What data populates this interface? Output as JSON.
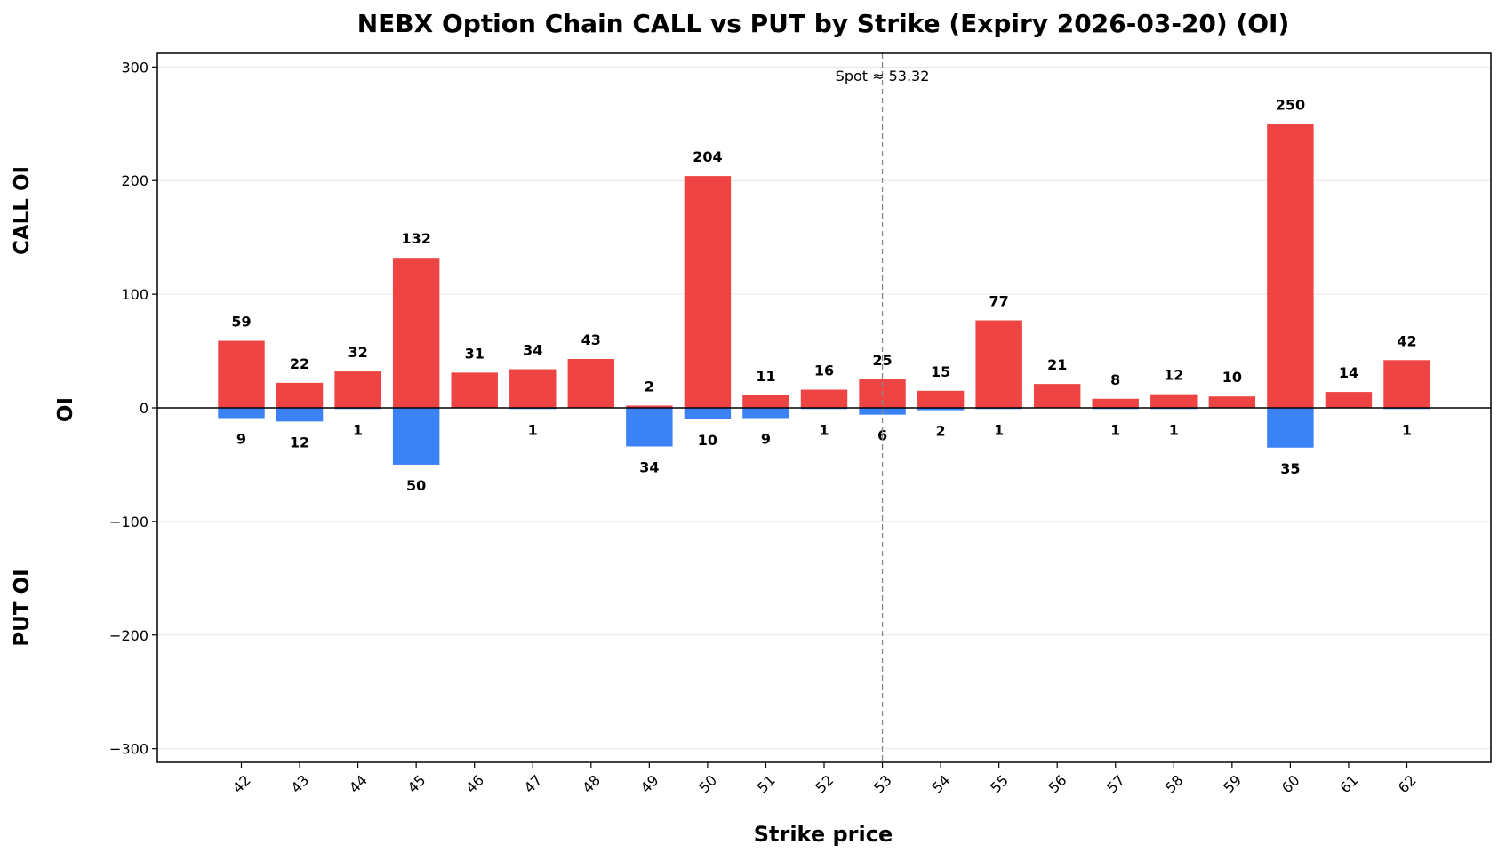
{
  "chart_data": {
    "type": "bar",
    "title": "NEBX Option Chain CALL vs PUT by Strike (Expiry 2026-03-20) (OI)",
    "xlabel": "Strike price",
    "ylabel": "OI",
    "side_labels": {
      "top": "CALL OI",
      "bottom": "PUT OI"
    },
    "spot_label": "Spot ≈ 53.32",
    "spot": 53.32,
    "ylim": [
      -312,
      312
    ],
    "yticks": [
      -300,
      -200,
      -100,
      0,
      100,
      200,
      300
    ],
    "grid": true,
    "categories": [
      "42",
      "43",
      "44",
      "45",
      "46",
      "47",
      "48",
      "49",
      "50",
      "51",
      "52",
      "53",
      "54",
      "55",
      "56",
      "57",
      "58",
      "59",
      "60",
      "61",
      "62"
    ],
    "series": [
      {
        "values": [
          59,
          22,
          32,
          132,
          31,
          34,
          43,
          2,
          204,
          11,
          16,
          25,
          15,
          77,
          21,
          8,
          12,
          10,
          250,
          14,
          42
        ],
        "color": "#ef4444"
      },
      {
        "values": [
          9,
          12,
          1,
          50,
          0,
          1,
          0,
          34,
          10,
          9,
          1,
          6,
          2,
          1,
          0,
          1,
          1,
          0,
          35,
          0,
          1
        ],
        "color": "#3b82f6"
      }
    ]
  }
}
